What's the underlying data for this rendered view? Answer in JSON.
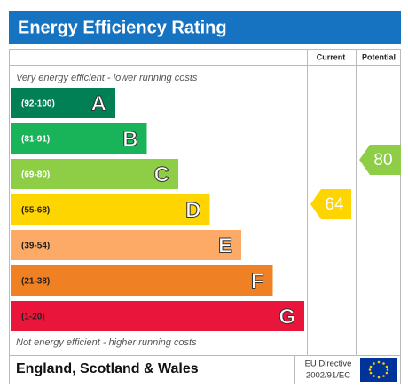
{
  "header": {
    "title": "Energy Efficiency Rating"
  },
  "columns": {
    "current": "Current",
    "potential": "Potential"
  },
  "top_note": "Very energy efficient - lower running costs",
  "bottom_note": "Not energy efficient - higher running costs",
  "bands": [
    {
      "range": "(92-100)",
      "letter": "A",
      "color": "#008054"
    },
    {
      "range": "(81-91)",
      "letter": "B",
      "color": "#19b459"
    },
    {
      "range": "(69-80)",
      "letter": "C",
      "color": "#8dce46"
    },
    {
      "range": "(55-68)",
      "letter": "D",
      "color": "#ffd500"
    },
    {
      "range": "(39-54)",
      "letter": "E",
      "color": "#fcaa65"
    },
    {
      "range": "(21-38)",
      "letter": "F",
      "color": "#ef8023"
    },
    {
      "range": "(1-20)",
      "letter": "G",
      "color": "#e9153b"
    }
  ],
  "ratings": {
    "current": {
      "value": 64,
      "color": "#ffd500"
    },
    "potential": {
      "value": 80,
      "color": "#8dce46"
    }
  },
  "footer": {
    "region": "England, Scotland & Wales",
    "directive": "EU Directive",
    "directive_code": "2002/91/EC"
  }
}
